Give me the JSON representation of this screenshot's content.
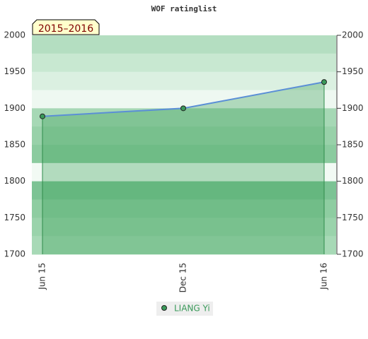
{
  "chart_data": {
    "type": "line",
    "title": "WOF ratinglist",
    "badge": "2015–2016",
    "categories": [
      "Jun 15",
      "Dec 15",
      "Jun 16"
    ],
    "series": [
      {
        "name": "LIANG Yi",
        "color": "#5b8fd6",
        "values": [
          1889,
          1900,
          1936
        ]
      }
    ],
    "ylim": [
      1700,
      2000
    ],
    "yticks": [
      1700,
      1750,
      1800,
      1850,
      1900,
      1950,
      2000
    ],
    "y2lim": [
      1700,
      2000
    ],
    "y2ticks": [
      1700,
      1750,
      1800,
      1850,
      1900,
      1950,
      2000
    ]
  }
}
